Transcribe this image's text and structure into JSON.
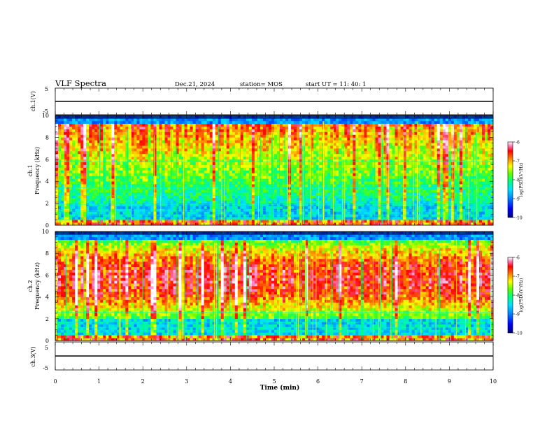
{
  "header": {
    "title": "VLF Spectra",
    "date": "Dec.21, 2024",
    "station": "station= MOS",
    "start": "start  UT  =   11: 40: 1"
  },
  "colors": {
    "colormap": [
      "#000080",
      "#0000ff",
      "#0080ff",
      "#00e0ff",
      "#00ff80",
      "#60ff00",
      "#ffff00",
      "#ff8000",
      "#ff0000",
      "#ff80c0",
      "#ffffff"
    ],
    "trace": "#000000"
  },
  "chart_data": [
    {
      "type": "line",
      "panel": "ch1-waveform",
      "ylabel": "ch.1(V)",
      "ylim": [
        -5,
        5
      ],
      "yticks": [
        "5",
        "-5"
      ],
      "xlim": [
        0,
        10
      ],
      "x": [
        0,
        10
      ],
      "values": [
        0,
        0
      ]
    },
    {
      "type": "heatmap",
      "panel": "ch1-spectrogram",
      "ylabel_top": "ch.1",
      "ylabel": "Frequency (kHz)",
      "ylim": [
        0,
        10
      ],
      "yticks": [
        "0",
        "2",
        "4",
        "6",
        "8",
        "10"
      ],
      "xlim": [
        0,
        10
      ],
      "colorbar": {
        "label": "log(PSD)(V²/Hz)",
        "range": [
          -10,
          -6
        ],
        "ticks": [
          "-6",
          "-7",
          "-8",
          "-9",
          "-10"
        ]
      }
    },
    {
      "type": "heatmap",
      "panel": "ch2-spectrogram",
      "ylabel_top": "ch.2",
      "ylabel": "Frequency (kHz)",
      "ylim": [
        0,
        10
      ],
      "yticks": [
        "0",
        "2",
        "4",
        "6",
        "8",
        "10"
      ],
      "xlim": [
        0,
        10
      ],
      "colorbar": {
        "label": "log(PSD)(V²/Hz)",
        "range": [
          -10,
          -6
        ],
        "ticks": [
          "-6",
          "-7",
          "-8",
          "-9",
          "-10"
        ]
      }
    },
    {
      "type": "line",
      "panel": "ch3-waveform",
      "ylabel": "ch.3(V)",
      "ylim": [
        -5,
        5
      ],
      "yticks": [
        "5",
        "-5"
      ],
      "xlim": [
        0,
        10
      ],
      "x": [
        0,
        10
      ],
      "values": [
        0,
        0
      ],
      "xlabel": "Time (min)",
      "xticks": [
        "0",
        "1",
        "2",
        "3",
        "4",
        "5",
        "6",
        "7",
        "8",
        "9",
        "10"
      ]
    }
  ]
}
